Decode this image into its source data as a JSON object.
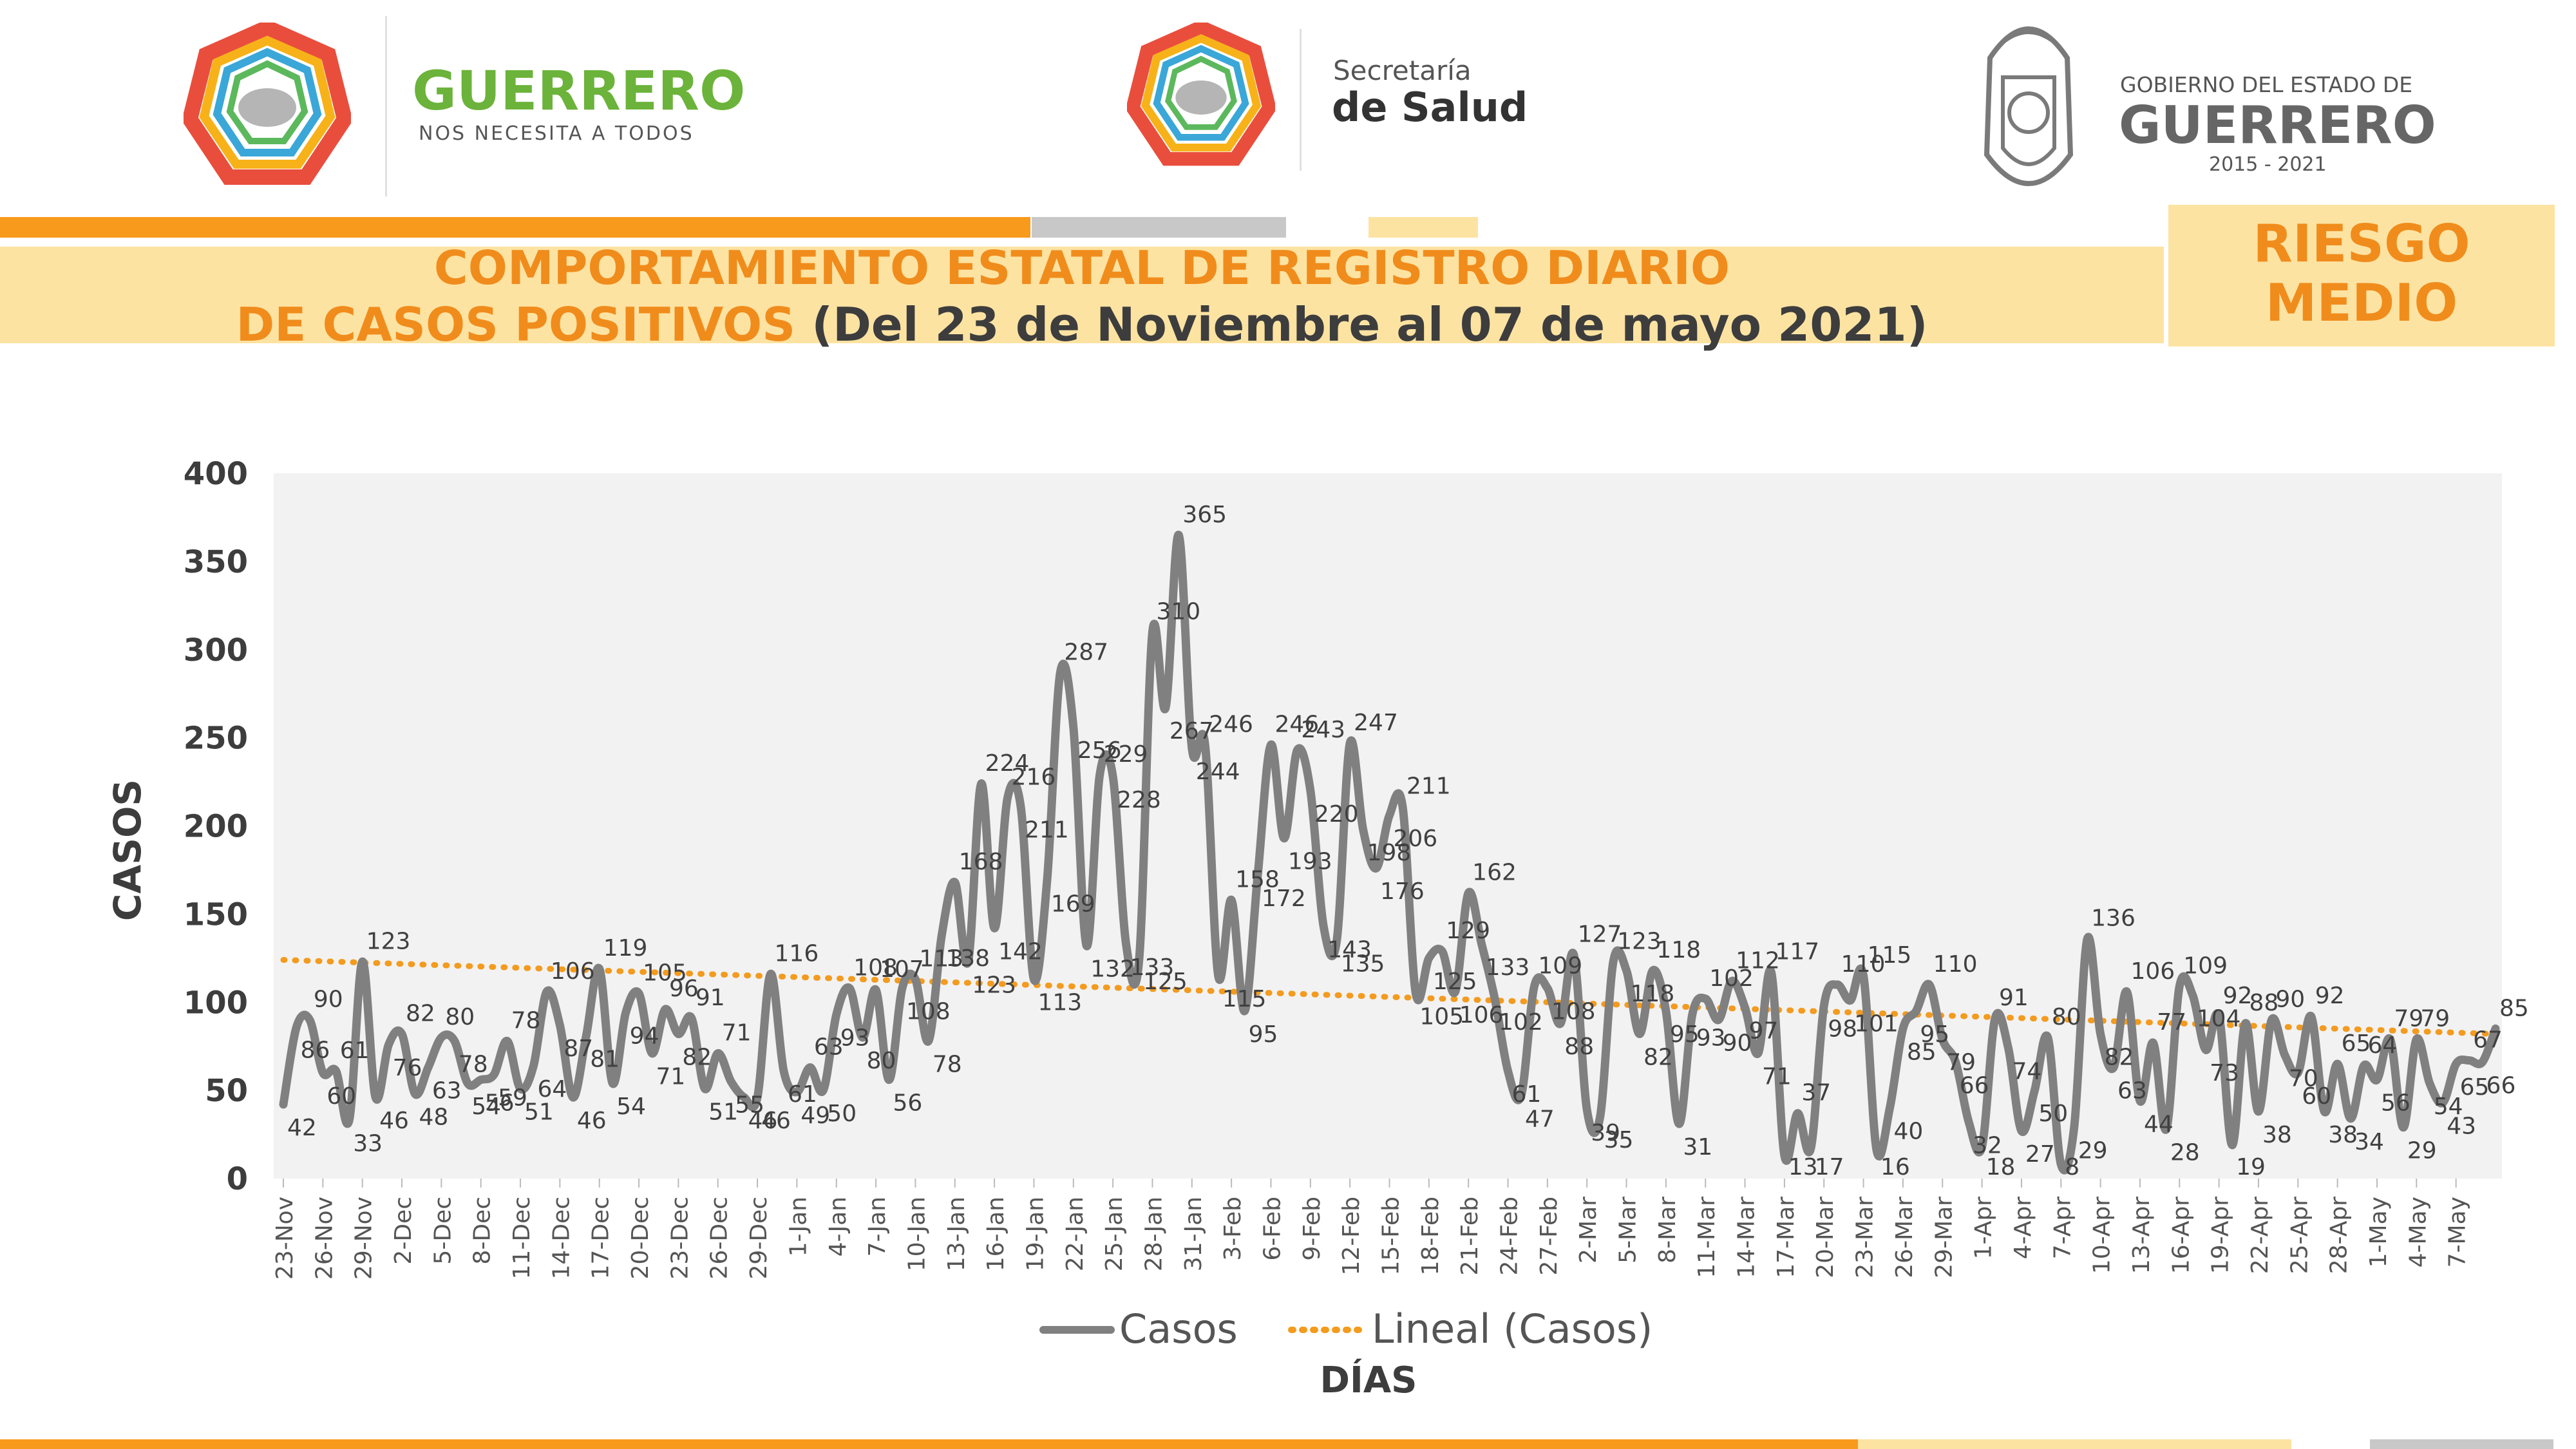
{
  "header": {
    "logo1": {
      "title": "GUERRERO",
      "tagline": "NOS NECESITA A TODOS"
    },
    "logo2": {
      "line1": "Secretaría",
      "line2": "de Salud"
    },
    "logo3": {
      "line1": "GOBIERNO DEL ESTADO DE",
      "line2": "GUERRERO",
      "line3": "2015 - 2021"
    }
  },
  "title": {
    "line1": "COMPORTAMIENTO ESTATAL DE REGISTRO DIARIO",
    "line2a": "DE CASOS POSITIVOS",
    "line2b": "(Del 23 de Noviembre al 07 de mayo 2021)"
  },
  "risk": {
    "line1": "RIESGO",
    "line2": "MEDIO"
  },
  "colors": {
    "orange": "#f89a1c",
    "light_orange": "#fde3a2",
    "gray_bar": "#c8c8c9",
    "series": "#808080",
    "trend": "#f39b1f",
    "plot_bg": "#f2f2f2"
  },
  "chart_data": {
    "type": "line",
    "ylabel": "CASOS",
    "xlabel": "DÍAS",
    "ylim": [
      0,
      400
    ],
    "yticks": [
      0,
      50,
      100,
      150,
      200,
      250,
      300,
      350,
      400
    ],
    "xtick_labels": [
      "23-Nov",
      "26-Nov",
      "29-Nov",
      "2-Dec",
      "5-Dec",
      "8-Dec",
      "11-Dec",
      "14-Dec",
      "17-Dec",
      "20-Dec",
      "23-Dec",
      "26-Dec",
      "29-Dec",
      "1-Jan",
      "4-Jan",
      "7-Jan",
      "10-Jan",
      "13-Jan",
      "16-Jan",
      "19-Jan",
      "22-Jan",
      "25-Jan",
      "28-Jan",
      "31-Jan",
      "3-Feb",
      "6-Feb",
      "9-Feb",
      "12-Feb",
      "15-Feb",
      "18-Feb",
      "21-Feb",
      "24-Feb",
      "27-Feb",
      "2-Mar",
      "5-Mar",
      "8-Mar",
      "11-Mar",
      "14-Mar",
      "17-Mar",
      "20-Mar",
      "23-Mar",
      "26-Mar",
      "29-Mar",
      "1-Apr",
      "4-Apr",
      "7-Apr",
      "10-Apr",
      "13-Apr",
      "16-Apr",
      "19-Apr",
      "22-Apr",
      "25-Apr",
      "28-Apr",
      "1-May",
      "4-May",
      "7-May"
    ],
    "legend": {
      "position": "bottom",
      "entries": [
        "Casos",
        "Lineal (Casos)"
      ]
    },
    "grid": false,
    "series": [
      {
        "name": "Casos",
        "values": [
          42,
          86,
          90,
          60,
          61,
          33,
          123,
          46,
          76,
          82,
          48,
          63,
          80,
          78,
          54,
          56,
          59,
          78,
          51,
          64,
          106,
          87,
          46,
          81,
          119,
          54,
          94,
          105,
          71,
          96,
          82,
          91,
          51,
          71,
          55,
          46,
          46,
          116,
          61,
          49,
          63,
          50,
          93,
          108,
          80,
          107,
          56,
          108,
          113,
          78,
          138,
          168,
          123,
          224,
          142,
          216,
          211,
          113,
          169,
          287,
          256,
          132,
          229,
          228,
          133,
          125,
          310,
          267,
          365,
          244,
          246,
          115,
          158,
          95,
          172,
          246,
          193,
          243,
          220,
          143,
          135,
          247,
          198,
          176,
          206,
          211,
          105,
          125,
          129,
          106,
          162,
          133,
          102,
          61,
          47,
          109,
          108,
          88,
          127,
          39,
          35,
          123,
          118,
          82,
          118,
          95,
          31,
          93,
          102,
          90,
          112,
          97,
          71,
          117,
          13,
          37,
          17,
          98,
          110,
          101,
          115,
          16,
          40,
          85,
          95,
          110,
          79,
          66,
          32,
          18,
          91,
          74,
          27,
          50,
          80,
          8,
          29,
          136,
          82,
          63,
          106,
          44,
          77,
          28,
          109,
          104,
          73,
          92,
          19,
          88,
          38,
          90,
          70,
          60,
          92,
          38,
          65,
          34,
          64,
          56,
          79,
          29,
          79,
          54,
          43,
          65,
          67,
          66,
          85
        ],
        "point_labels": true
      },
      {
        "name": "Lineal (Casos)",
        "type": "trendline",
        "values": [
          124,
          82
        ]
      }
    ]
  }
}
